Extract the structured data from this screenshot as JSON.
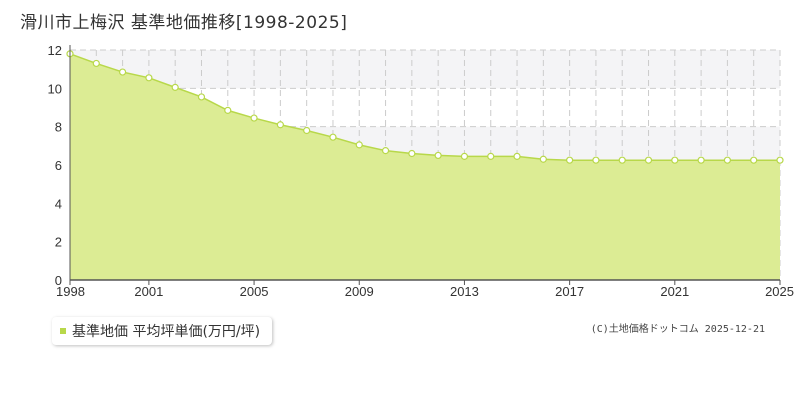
{
  "title": "滑川市上梅沢 基準地価推移[1998-2025]",
  "legend": {
    "label": "基準地価 平均坪単価(万円/坪)"
  },
  "credit": "(C)土地価格ドットコム 2025-12-21",
  "colors": {
    "fill": "#dcec94",
    "line": "#b8d84a",
    "marker_stroke": "#b8d84a",
    "marker_fill": "#ffffff",
    "legend_marker": "#b8d84a",
    "band": "#f4f4f6",
    "grid": "#cccccc",
    "axis": "#555555"
  },
  "chart_data": {
    "type": "area",
    "x": [
      1998,
      1999,
      2000,
      2001,
      2002,
      2003,
      2004,
      2005,
      2006,
      2007,
      2008,
      2009,
      2010,
      2011,
      2012,
      2013,
      2014,
      2015,
      2016,
      2017,
      2018,
      2019,
      2020,
      2021,
      2022,
      2023,
      2024,
      2025
    ],
    "series": [
      {
        "name": "基準地価 平均坪単価(万円/坪)",
        "values": [
          11.8,
          11.3,
          10.85,
          10.55,
          10.05,
          9.55,
          8.85,
          8.45,
          8.1,
          7.8,
          7.45,
          7.05,
          6.75,
          6.6,
          6.5,
          6.45,
          6.45,
          6.45,
          6.3,
          6.25,
          6.25,
          6.25,
          6.25,
          6.25,
          6.25,
          6.25,
          6.25,
          6.25
        ]
      }
    ],
    "xticks": [
      "1998",
      "2001",
      "2005",
      "2009",
      "2013",
      "2017",
      "2021",
      "2025"
    ],
    "yticks": [
      "0",
      "2",
      "4",
      "6",
      "8",
      "10",
      "12"
    ],
    "xlim": [
      1998,
      2025
    ],
    "ylim": [
      0,
      12
    ],
    "xlabel": "",
    "ylabel": "",
    "grid": true,
    "legend_position": "bottom-left"
  }
}
